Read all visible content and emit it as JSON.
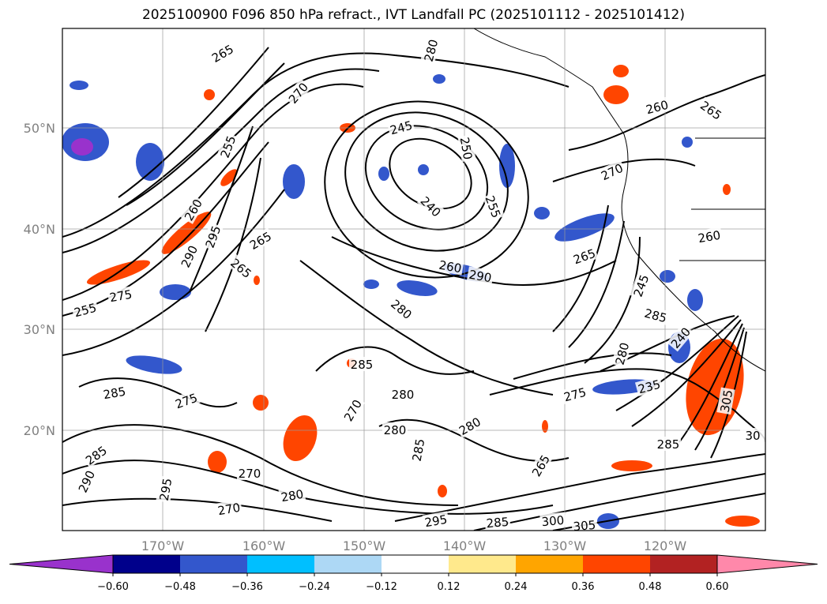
{
  "title": "2025100900 F096 850 hPa refract., IVT Landfall PC (2025101112 - 2025101412)",
  "map": {
    "lon_ticks": [
      "170°W",
      "160°W",
      "150°W",
      "140°W",
      "130°W",
      "120°W"
    ],
    "lat_ticks": [
      "50°N",
      "40°N",
      "30°N",
      "20°N"
    ],
    "grid": true
  },
  "colorbar": {
    "levels": [
      "−0.60",
      "−0.48",
      "−0.36",
      "−0.24",
      "−0.12",
      "0.12",
      "0.24",
      "0.36",
      "0.48",
      "0.60"
    ],
    "colors": [
      "#9932cc",
      "#00008b",
      "#3357cc",
      "#00bfff",
      "#add8f5",
      "#ffffff",
      "#ffe98c",
      "#ffa500",
      "#ff4500",
      "#b22222",
      "#ff88aa"
    ],
    "extend": "both"
  },
  "contour_labels": [
    "265",
    "280",
    "270",
    "260",
    "265",
    "245",
    "250",
    "255",
    "240",
    "280",
    "270",
    "255",
    "260",
    "295",
    "290",
    "265",
    "265",
    "260",
    "265",
    "260",
    "245",
    "240",
    "280",
    "290",
    "285",
    "235",
    "255",
    "275",
    "285",
    "275",
    "285",
    "270",
    "280",
    "280",
    "280",
    "285",
    "275",
    "285",
    "270",
    "290",
    "295",
    "270",
    "280",
    "265",
    "285",
    "295",
    "285",
    "300",
    "305",
    "305",
    "30"
  ]
}
